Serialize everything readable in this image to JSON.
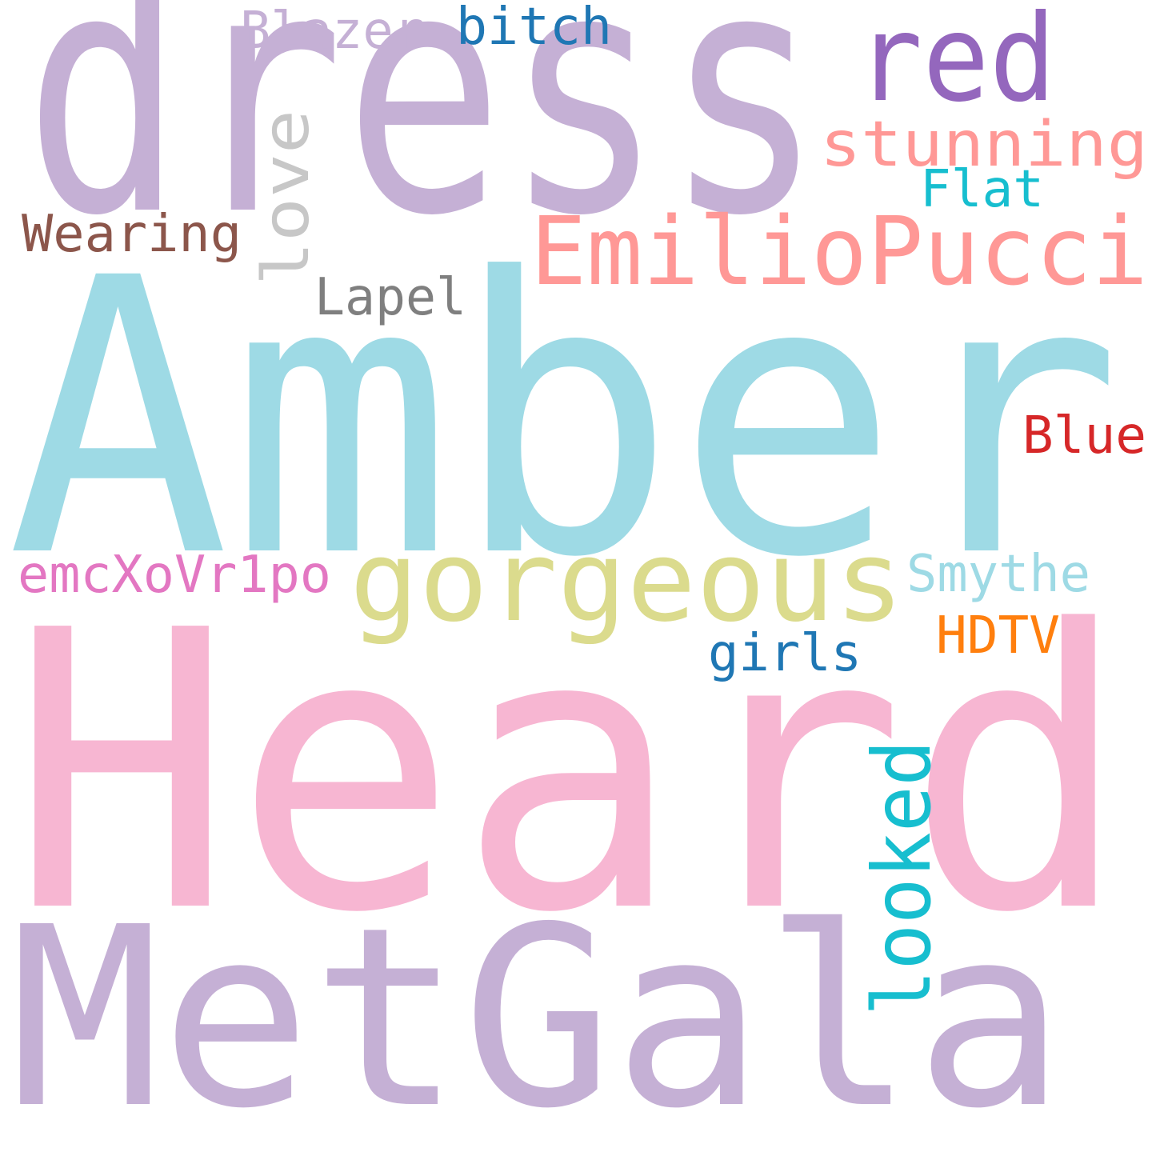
{
  "words": [
    {
      "id": "word-dress",
      "text": "dress",
      "color": "#c5b0d5"
    },
    {
      "id": "word-red",
      "text": "red",
      "color": "#9467bd"
    },
    {
      "id": "word-blazer",
      "text": "Blazer",
      "color": "#c5b0d5"
    },
    {
      "id": "word-bitch",
      "text": "bitch",
      "color": "#1f77b4"
    },
    {
      "id": "word-stunning",
      "text": "stunning",
      "color": "#ff9896"
    },
    {
      "id": "word-love",
      "text": "love",
      "color": "#c7c7c7"
    },
    {
      "id": "word-flat",
      "text": "Flat",
      "color": "#17becf"
    },
    {
      "id": "word-wearing",
      "text": "Wearing",
      "color": "#8c564b"
    },
    {
      "id": "word-emiliopucci",
      "text": "EmilioPucci",
      "color": "#ff9896"
    },
    {
      "id": "word-lapel",
      "text": "Lapel",
      "color": "#7f7f7f"
    },
    {
      "id": "word-amber",
      "text": "Amber",
      "color": "#9edae5"
    },
    {
      "id": "word-blue",
      "text": "Blue",
      "color": "#d62728"
    },
    {
      "id": "word-emcxovr1po",
      "text": "emcXoVr1po",
      "color": "#e377c2"
    },
    {
      "id": "word-gorgeous",
      "text": "gorgeous",
      "color": "#dbdb8d"
    },
    {
      "id": "word-smythe",
      "text": "Smythe",
      "color": "#9edae5"
    },
    {
      "id": "word-hdtv",
      "text": "HDTV",
      "color": "#ff7f0e"
    },
    {
      "id": "word-girls",
      "text": "girls",
      "color": "#1f77b4"
    },
    {
      "id": "word-heard",
      "text": "Heard",
      "color": "#f7b6d2"
    },
    {
      "id": "word-looked",
      "text": "looked",
      "color": "#17becf"
    },
    {
      "id": "word-metgala",
      "text": "MetGala",
      "color": "#c5b0d5"
    }
  ]
}
